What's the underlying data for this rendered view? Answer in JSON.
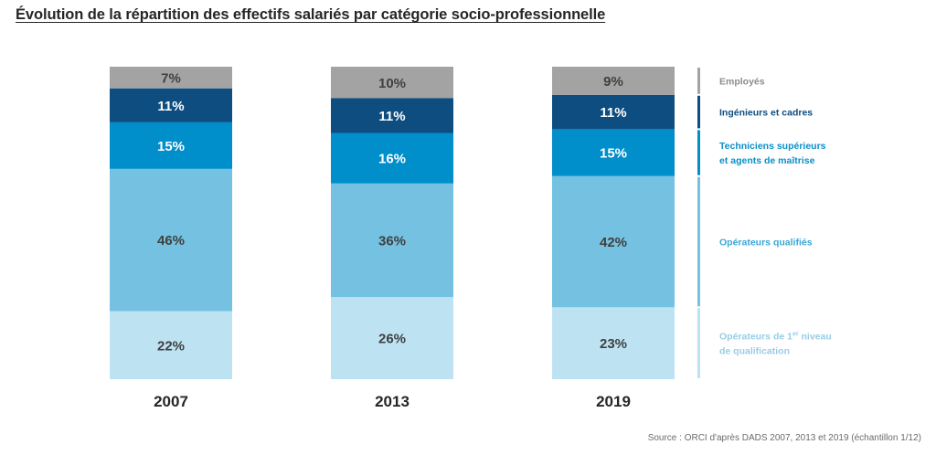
{
  "title": "Évolution de la répartition des effectifs salariés par catégorie socio-professionnelle",
  "source": "Source : ORCI d'après DADS 2007, 2013 et 2019 (échantillon 1/12)",
  "chart_data": {
    "type": "bar",
    "stacked": true,
    "unit": "%",
    "categories": [
      "2007",
      "2013",
      "2019"
    ],
    "series": [
      {
        "name": "Opérateurs de 1er niveau de qualification",
        "label_lines": [
          "Opérateurs de 1",
          "er",
          " niveau",
          "de qualification"
        ],
        "color": "#bde3f3",
        "text_color": "#98cde6",
        "values": [
          22,
          26,
          23
        ],
        "labels": [
          "22%",
          "26%",
          "23%"
        ]
      },
      {
        "name": "Opérateurs qualifiés",
        "color": "#74c1e1",
        "text_color": "#3aa6d6",
        "values": [
          46,
          36,
          42
        ],
        "labels": [
          "46%",
          "36%",
          "42%"
        ]
      },
      {
        "name": "Techniciens supérieurs et agents de maîtrise",
        "label_lines": [
          "Techniciens supérieurs",
          "et agents de maîtrise"
        ],
        "color": "#008fcb",
        "text_color": "#0a8fc9",
        "values": [
          15,
          16,
          15
        ],
        "labels": [
          "15%",
          "16%",
          "15%"
        ]
      },
      {
        "name": "Ingénieurs et cadres",
        "color": "#0e4d80",
        "text_color": "#0e4d80",
        "values": [
          11,
          11,
          11
        ],
        "labels": [
          "11%",
          "11%",
          "11%"
        ]
      },
      {
        "name": "Employés",
        "color": "#a3a3a3",
        "text_color": "#8c8c8c",
        "values": [
          7,
          10,
          9
        ],
        "labels": [
          "7%",
          "10%",
          "9%"
        ]
      }
    ],
    "label_colors": {
      "light": "#404040",
      "dark": "#ffffff"
    },
    "legend_position": "right",
    "grid": false,
    "ylim": [
      0,
      100
    ]
  }
}
